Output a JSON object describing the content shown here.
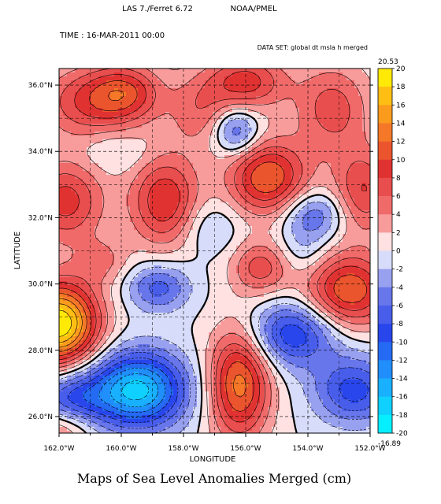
{
  "header": {
    "program": "LAS 7./Ferret 6.72",
    "org": "NOAA/PMEL",
    "time_label": "TIME : 16-MAR-2011 00:00",
    "dataset_label": "DATA SET: global dt msla h merged"
  },
  "chart_data": {
    "type": "heatmap",
    "title": "Maps of Sea Level Anomalies Merged (cm)",
    "xlabel": "LONGITUDE",
    "ylabel": "LATITUDE",
    "xlim": [
      -162,
      -152
    ],
    "ylim": [
      25.5,
      36.5
    ],
    "x_ticks": [
      -162,
      -160,
      -158,
      -156,
      -154,
      -152
    ],
    "x_tick_labels": [
      "162.0°W",
      "160.0°W",
      "158.0°W",
      "156.0°W",
      "154.0°W",
      "152.0°W"
    ],
    "y_ticks": [
      26,
      28,
      30,
      32,
      34,
      36
    ],
    "y_tick_labels": [
      "26.0°N",
      "28.0°N",
      "30.0°N",
      "32.0°N",
      "34.0°N",
      "36.0°N"
    ],
    "grid": true,
    "colorbar": {
      "min": -20,
      "max": 20,
      "step": 2,
      "labels": [
        "20",
        "18",
        "16",
        "14",
        "12",
        "10",
        "8",
        "6",
        "4",
        "2",
        "0",
        "-2",
        "-4",
        "-6",
        "-8",
        "-10",
        "-12",
        "-14",
        "-16",
        "-18",
        "-20"
      ],
      "data_max_label": "20.53",
      "data_min_label": "-16.89"
    },
    "features": [
      {
        "lon": -162.0,
        "lat": 28.8,
        "amp": 20,
        "sx": 0.9,
        "sy": 0.9
      },
      {
        "lon": -161.8,
        "lat": 32.5,
        "amp": 9,
        "sx": 0.9,
        "sy": 0.9
      },
      {
        "lon": -161.0,
        "lat": 35.5,
        "amp": 8,
        "sx": 1.2,
        "sy": 0.8
      },
      {
        "lon": -159.8,
        "lat": 35.8,
        "amp": 7,
        "sx": 0.8,
        "sy": 0.6
      },
      {
        "lon": -158.6,
        "lat": 32.5,
        "amp": 10,
        "sx": 0.8,
        "sy": 1.0
      },
      {
        "lon": -157.5,
        "lat": 35.2,
        "amp": 5,
        "sx": 0.7,
        "sy": 0.8
      },
      {
        "lon": -156.0,
        "lat": 36.1,
        "amp": 9,
        "sx": 0.9,
        "sy": 0.6
      },
      {
        "lon": -155.3,
        "lat": 33.2,
        "amp": 12,
        "sx": 0.9,
        "sy": 0.8
      },
      {
        "lon": -153.2,
        "lat": 35.3,
        "amp": 7,
        "sx": 0.9,
        "sy": 1.0
      },
      {
        "lon": -152.2,
        "lat": 32.8,
        "amp": 8,
        "sx": 0.7,
        "sy": 0.9
      },
      {
        "lon": -152.7,
        "lat": 29.8,
        "amp": 12,
        "sx": 1.0,
        "sy": 0.8
      },
      {
        "lon": -156.2,
        "lat": 27.0,
        "amp": 13,
        "sx": 0.7,
        "sy": 1.2
      },
      {
        "lon": -155.5,
        "lat": 30.5,
        "amp": 7,
        "sx": 0.7,
        "sy": 0.6
      },
      {
        "lon": -160.6,
        "lat": 30.7,
        "amp": 4,
        "sx": 0.6,
        "sy": 0.5
      },
      {
        "lon": -162.0,
        "lat": 25.7,
        "amp": 6,
        "sx": 0.8,
        "sy": 0.5
      },
      {
        "lon": -156.3,
        "lat": 34.6,
        "amp": -7,
        "sx": 0.5,
        "sy": 0.5
      },
      {
        "lon": -158.8,
        "lat": 29.9,
        "amp": -7,
        "sx": 0.7,
        "sy": 0.5
      },
      {
        "lon": -159.5,
        "lat": 26.8,
        "amp": -17,
        "sx": 1.1,
        "sy": 0.8
      },
      {
        "lon": -161.7,
        "lat": 26.5,
        "amp": -8,
        "sx": 0.8,
        "sy": 0.6
      },
      {
        "lon": -154.5,
        "lat": 28.5,
        "amp": -10,
        "sx": 1.0,
        "sy": 0.7
      },
      {
        "lon": -152.5,
        "lat": 26.8,
        "amp": -9,
        "sx": 0.9,
        "sy": 0.7
      },
      {
        "lon": -153.8,
        "lat": 32.1,
        "amp": -6,
        "sx": 0.7,
        "sy": 0.5
      },
      {
        "lon": -157.2,
        "lat": 31.7,
        "amp": -3,
        "sx": 0.7,
        "sy": 0.6
      },
      {
        "lon": -154.2,
        "lat": 31.0,
        "amp": -3,
        "sx": 0.6,
        "sy": 0.6
      },
      {
        "lon": -160.2,
        "lat": 34.0,
        "amp": -2,
        "sx": 0.8,
        "sy": 0.4
      }
    ]
  }
}
